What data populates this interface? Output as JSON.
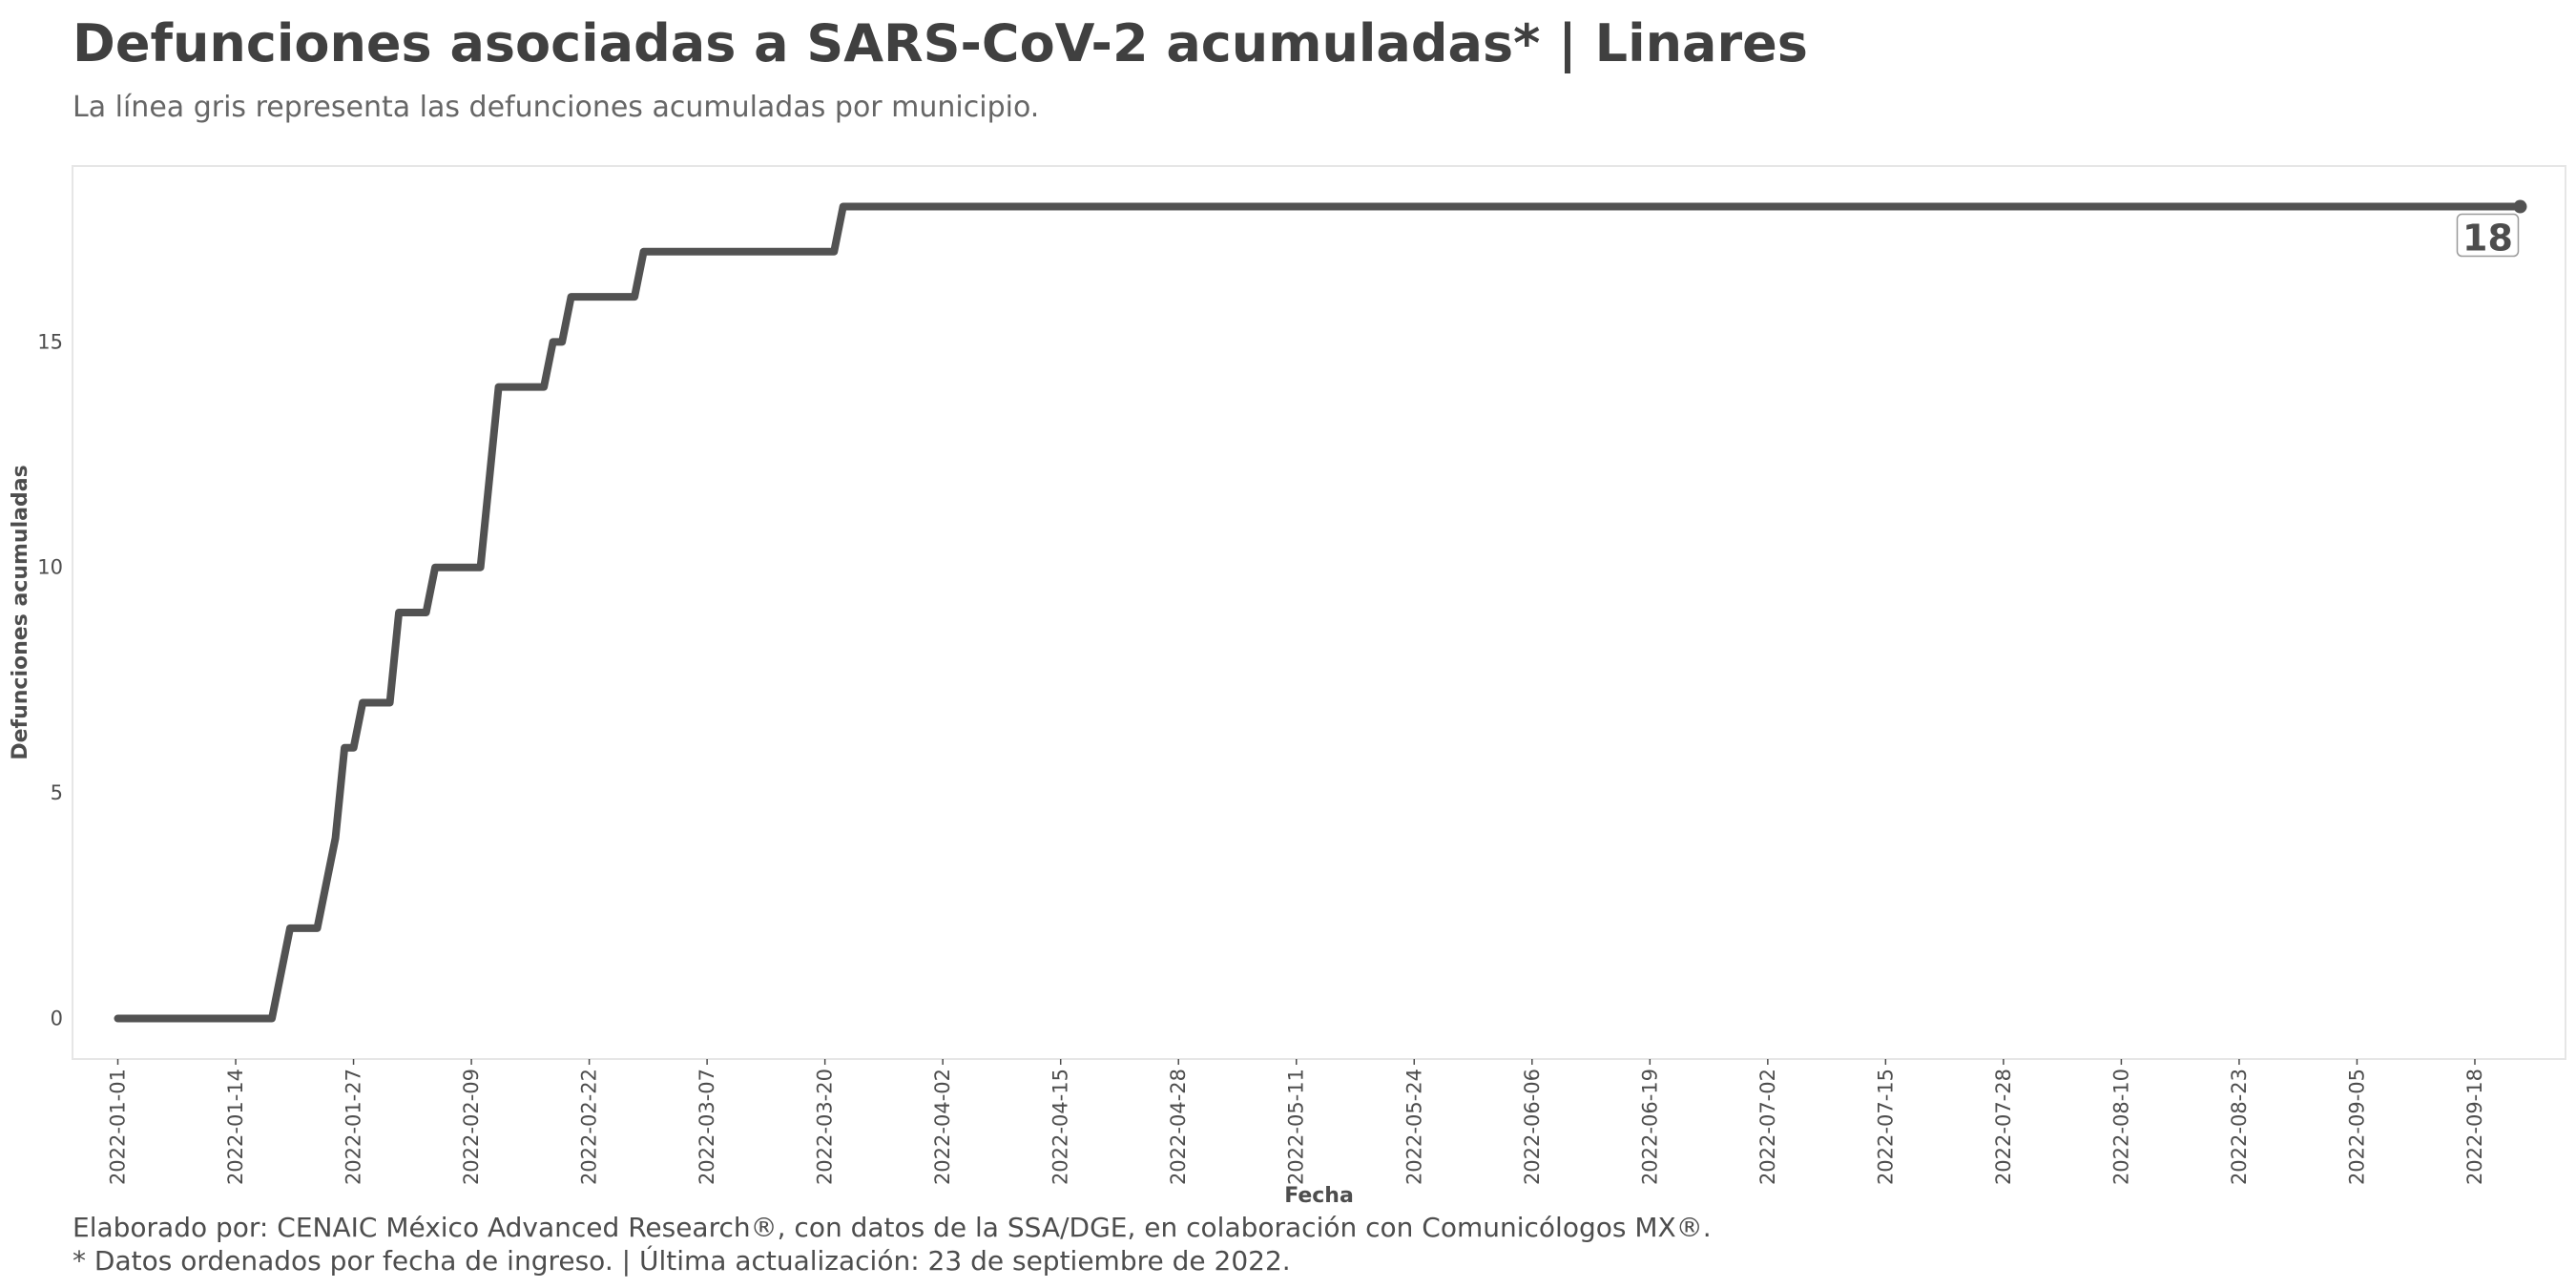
{
  "header": {
    "title": "Defunciones asociadas a SARS-CoV-2 acumuladas* | Linares",
    "subtitle": "La línea gris representa las defunciones acumuladas por municipio."
  },
  "footer": {
    "credit": "Elaborado por: CENAIC México Advanced Research®, con datos de la SSA/DGE, en colaboración con Comunicólogos MX®.",
    "note": "* Datos ordenados por fecha de ingreso. | Última actualización: 23 de septiembre de 2022."
  },
  "colors": {
    "line": "#525252",
    "panel_border": "#e6e6e6"
  },
  "chart_data": {
    "type": "line",
    "title": "Defunciones asociadas a SARS-CoV-2 acumuladas* | Linares",
    "subtitle": "La línea gris representa las defunciones acumuladas por municipio.",
    "xlabel": "Fecha",
    "ylabel": "Defunciones acumuladas",
    "x_ticks": [
      "2022-01-01",
      "2022-01-14",
      "2022-01-27",
      "2022-02-09",
      "2022-02-22",
      "2022-03-07",
      "2022-03-20",
      "2022-04-02",
      "2022-04-15",
      "2022-04-28",
      "2022-05-11",
      "2022-05-24",
      "2022-06-06",
      "2022-06-19",
      "2022-07-02",
      "2022-07-15",
      "2022-07-28",
      "2022-08-10",
      "2022-08-23",
      "2022-09-05",
      "2022-09-18"
    ],
    "y_ticks": [
      0,
      5,
      10,
      15
    ],
    "ylim": [
      -0.9,
      18.9
    ],
    "xlim": [
      "2021-12-27",
      "2022-09-28"
    ],
    "grid": false,
    "end_label": "18",
    "series": [
      {
        "points": [
          [
            "2022-01-01",
            0
          ],
          [
            "2022-01-18",
            0
          ],
          [
            "2022-01-20",
            2
          ],
          [
            "2022-01-23",
            2
          ],
          [
            "2022-01-25",
            4
          ],
          [
            "2022-01-26",
            6
          ],
          [
            "2022-01-27",
            6
          ],
          [
            "2022-01-28",
            7
          ],
          [
            "2022-01-31",
            7
          ],
          [
            "2022-02-01",
            9
          ],
          [
            "2022-02-04",
            9
          ],
          [
            "2022-02-05",
            10
          ],
          [
            "2022-02-10",
            10
          ],
          [
            "2022-02-12",
            14
          ],
          [
            "2022-02-17",
            14
          ],
          [
            "2022-02-18",
            15
          ],
          [
            "2022-02-19",
            15
          ],
          [
            "2022-02-20",
            16
          ],
          [
            "2022-02-27",
            16
          ],
          [
            "2022-02-28",
            17
          ],
          [
            "2022-03-21",
            17
          ],
          [
            "2022-03-22",
            18
          ],
          [
            "2022-09-23",
            18
          ]
        ]
      }
    ]
  }
}
